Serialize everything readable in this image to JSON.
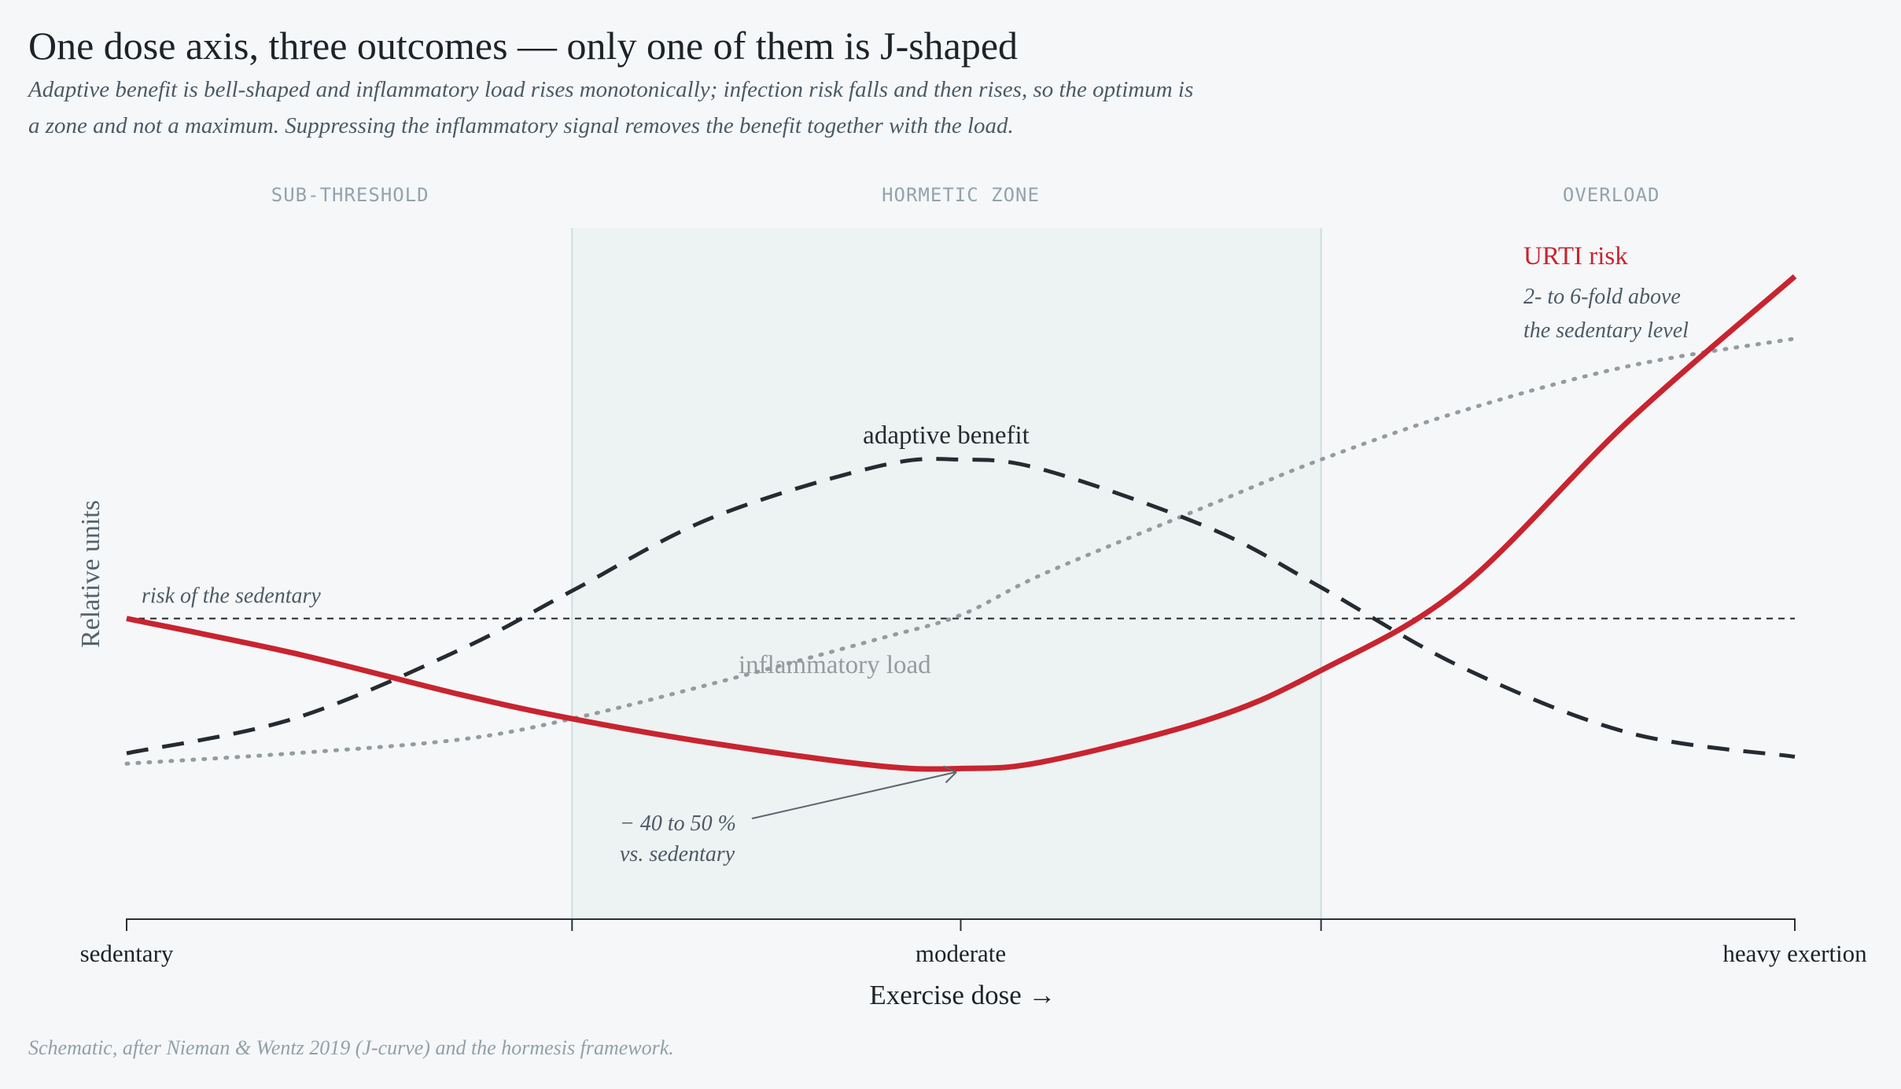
{
  "chart_data": {
    "type": "line",
    "title": "One dose axis, three outcomes — only one of them is J-shaped",
    "subtitle": [
      "Adaptive benefit is bell-shaped and inflammatory load rises monotonically; infection risk falls and then rises, so the optimum is",
      "a zone and not a maximum. Suppressing the inflammatory signal removes the benefit together with the load."
    ],
    "xlabel": "Exercise dose →",
    "ylabel": "Relative units",
    "x_ticks": [
      {
        "x": 0,
        "label": "sedentary"
      },
      {
        "x": 0.267,
        "label": ""
      },
      {
        "x": 0.5,
        "label": "moderate"
      },
      {
        "x": 0.716,
        "label": ""
      },
      {
        "x": 1,
        "label": "heavy exertion"
      }
    ],
    "xlim": [
      0,
      1
    ],
    "ylim": [
      0,
      1
    ],
    "zones": [
      {
        "label": "SUB-THRESHOLD",
        "x_start": 0,
        "x_end": 0.267
      },
      {
        "label": "HORMETIC ZONE",
        "x_start": 0.267,
        "x_end": 0.716
      },
      {
        "label": "OVERLOAD",
        "x_start": 0.716,
        "x_end": 1
      }
    ],
    "reference_line": {
      "y": 0.435,
      "label": "risk of the sedentary"
    },
    "series": [
      {
        "name": "URTI risk",
        "style": "solid",
        "color": "#c8242f",
        "x": [
          0,
          0.1,
          0.2,
          0.267,
          0.35,
          0.45,
          0.5,
          0.55,
          0.65,
          0.716,
          0.8,
          0.9,
          1
        ],
        "y": [
          0.435,
          0.385,
          0.325,
          0.29,
          0.255,
          0.222,
          0.218,
          0.228,
          0.29,
          0.36,
          0.48,
          0.72,
          0.93
        ]
      },
      {
        "name": "adaptive benefit",
        "style": "dashed",
        "color": "#252b30",
        "x": [
          0,
          0.1,
          0.2,
          0.267,
          0.35,
          0.45,
          0.5,
          0.55,
          0.65,
          0.716,
          0.8,
          0.9,
          1
        ],
        "y": [
          0.24,
          0.29,
          0.39,
          0.475,
          0.58,
          0.655,
          0.665,
          0.65,
          0.565,
          0.48,
          0.365,
          0.27,
          0.235
        ]
      },
      {
        "name": "inflammatory load",
        "style": "dotted",
        "color": "#939c9f",
        "x": [
          0,
          0.1,
          0.2,
          0.267,
          0.35,
          0.45,
          0.5,
          0.55,
          0.65,
          0.716,
          0.8,
          0.9,
          1
        ],
        "y": [
          0.225,
          0.24,
          0.26,
          0.29,
          0.34,
          0.405,
          0.44,
          0.5,
          0.6,
          0.665,
          0.735,
          0.8,
          0.84
        ]
      }
    ],
    "annotations": [
      {
        "target": "URTI risk",
        "lines": [
          "2- to 6-fold above",
          "the sedentary level"
        ]
      },
      {
        "target": "minimum",
        "x": 0.5,
        "y": 0.218,
        "lines": [
          "− 40 to 50 %",
          "vs. sedentary"
        ]
      }
    ],
    "source": "Schematic, after Nieman & Wentz 2019 (J-curve) and the hormesis framework.",
    "colors": {
      "background": "#f5f7f9",
      "zone_fill": "#edf2f2",
      "zone_border": "#d2dddd",
      "text": "#1d2328",
      "muted": "#4c5a65"
    }
  }
}
